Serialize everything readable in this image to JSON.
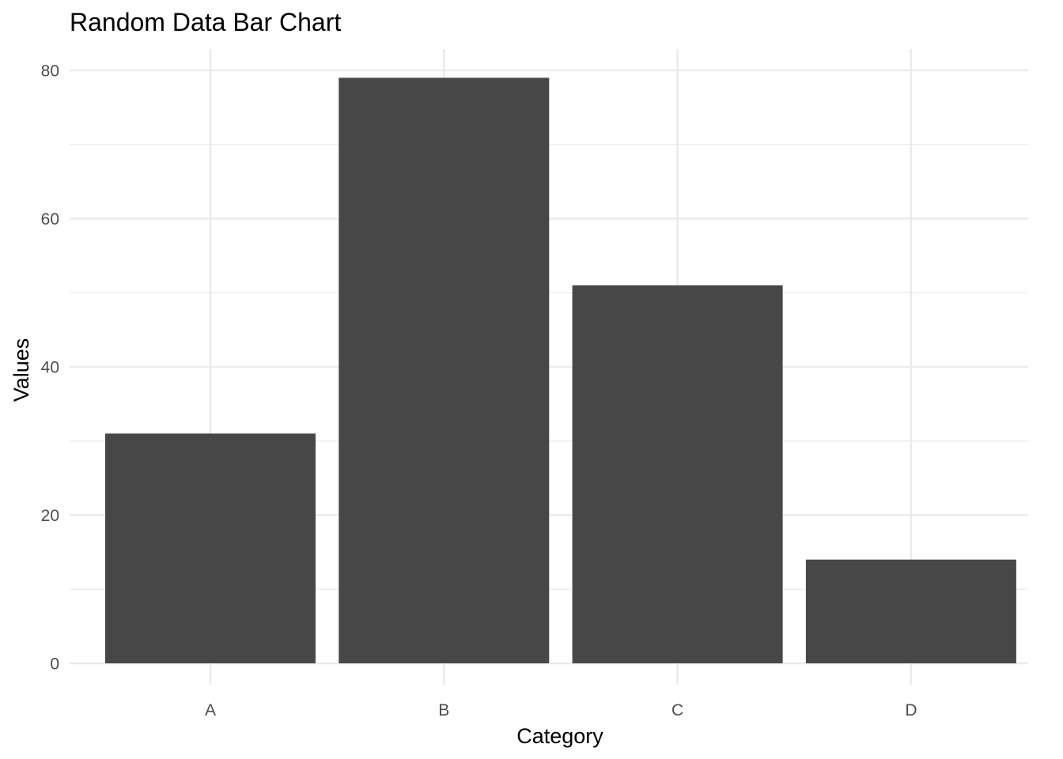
{
  "chart_data": {
    "type": "bar",
    "title": "Random Data Bar Chart",
    "xlabel": "Category",
    "ylabel": "Values",
    "categories": [
      "A",
      "B",
      "C",
      "D"
    ],
    "values": [
      31,
      79,
      51,
      14
    ],
    "ylim": [
      0,
      80
    ],
    "y_ticks": [
      0,
      20,
      40,
      60,
      80
    ],
    "y_tick_labels": [
      "0",
      "20",
      "40",
      "60",
      "80"
    ],
    "y_minor_ticks": [
      10,
      30,
      50,
      70
    ],
    "grid": true,
    "bar_color": "#474747",
    "grid_color": "#ebebeb",
    "background_color": "#ffffff"
  }
}
